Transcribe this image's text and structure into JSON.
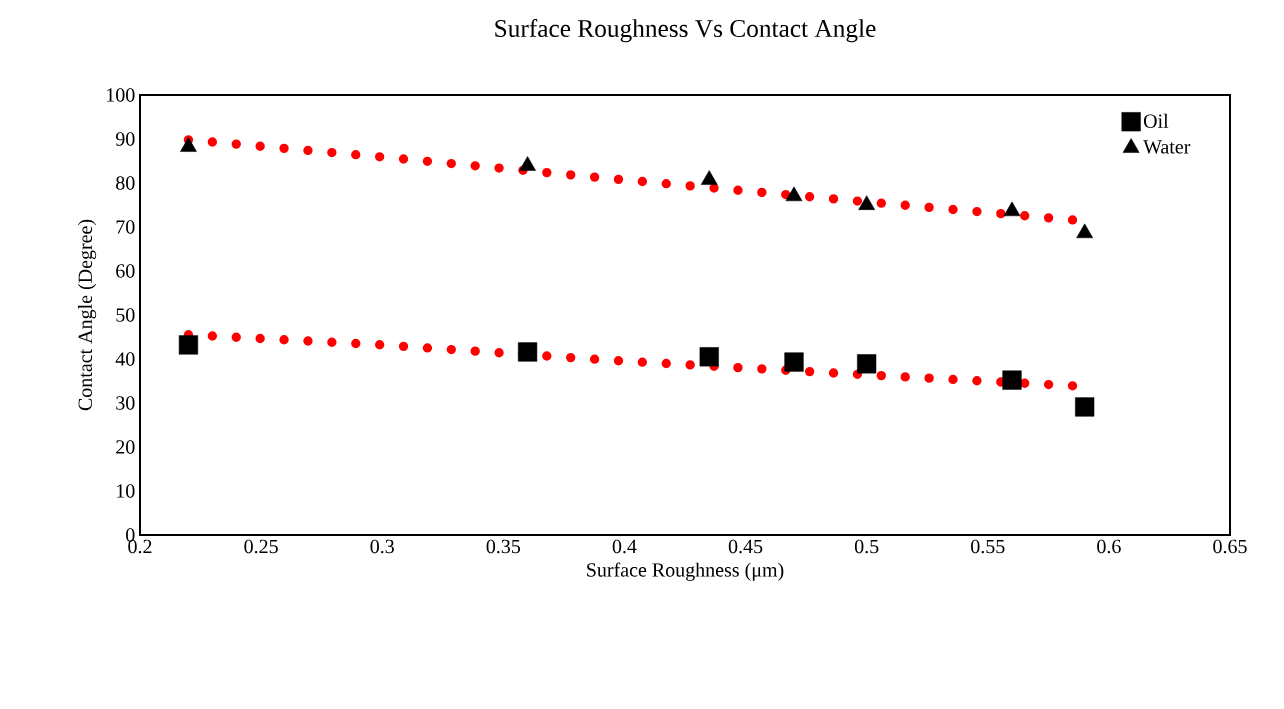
{
  "chart_data": {
    "type": "scatter",
    "title": "Surface Roughness Vs Contact Angle",
    "xlabel": "Surface Roughness (μm)",
    "ylabel": "Contact Angle (Degree)",
    "xlim": [
      0.2,
      0.65
    ],
    "xticks": [
      0.2,
      0.25,
      0.3,
      0.35,
      0.4,
      0.45,
      0.5,
      0.55,
      0.6,
      0.65
    ],
    "ylim": [
      0,
      100
    ],
    "yticks": [
      0,
      10,
      20,
      30,
      40,
      50,
      60,
      70,
      80,
      90,
      100
    ],
    "grid": false,
    "legend": "top right",
    "series": [
      {
        "name": "Oil",
        "color": "#000000",
        "marker": "square",
        "x": [
          0.22,
          0.36,
          0.435,
          0.47,
          0.5,
          0.56,
          0.59
        ],
        "values": [
          43.2,
          41.6,
          40.5,
          39.3,
          38.9,
          35.2,
          29.1
        ]
      },
      {
        "name": "Water",
        "color": "#000000",
        "marker": "triangle",
        "x": [
          0.22,
          0.36,
          0.435,
          0.47,
          0.5,
          0.56,
          0.59
        ],
        "values": [
          88.2,
          83.9,
          80.7,
          77.0,
          75.0,
          73.6,
          68.6
        ]
      },
      {
        "type": "line",
        "color": "#ff0000",
        "line_style": "dotted",
        "marker": "none",
        "x": [
          0.22,
          0.3,
          0.4,
          0.5,
          0.585
        ],
        "values": [
          45.5,
          43.2,
          39.5,
          36.4,
          33.9
        ]
      },
      {
        "type": "line",
        "color": "#ff0000",
        "line_style": "dotted",
        "marker": "none",
        "x": [
          0.22,
          0.3,
          0.4,
          0.5,
          0.585
        ],
        "values": [
          89.8,
          85.9,
          80.7,
          75.7,
          71.6
        ]
      }
    ]
  }
}
